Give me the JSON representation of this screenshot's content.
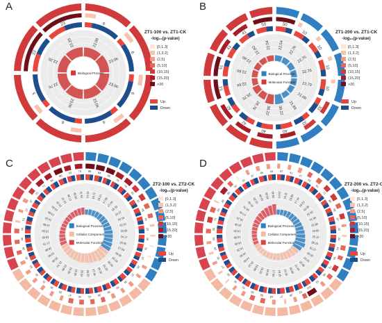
{
  "colors": {
    "up": "#e8473f",
    "down": "#1f4e8c",
    "grid_bg": "#ececec",
    "term_bp_red": "#d03a3a",
    "term_bp_blue": "#2f7fc1",
    "term_cc": "#f4b9a2",
    "term_mf": "#d8444e"
  },
  "legend_scale": {
    "items": [
      {
        "label": "[0,1.3]",
        "color": "#fde3d8"
      },
      {
        "label": "(1,3.2]",
        "color": "#f9c4ad"
      },
      {
        "label": "(2,5]",
        "color": "#f29b83"
      },
      {
        "label": "(5,10]",
        "color": "#e3685a"
      },
      {
        "label": "(10,15]",
        "color": "#cf3b3b"
      },
      {
        "label": "(15,20]",
        "color": "#a81d2a"
      },
      {
        "label": ">20",
        "color": "#6f0f1a"
      }
    ]
  },
  "legend_updown": [
    {
      "label": "Up",
      "color": "#e8473f"
    },
    {
      "label": "Down",
      "color": "#1f4e8c"
    }
  ],
  "chart_data": [
    {
      "type": "circos-enrichment",
      "panel": "A",
      "title": "ZT1-100 vs. ZT1-CK",
      "subtitle": "-log₁₀(p-value)",
      "categories": [
        "Biological Process"
      ],
      "term_colors": [
        "#d03a3a"
      ],
      "terms": 8,
      "rich_factor": [
        22.09,
        23.06,
        23.06,
        23.06,
        23.06,
        22.76,
        22.29,
        22.29
      ],
      "counts_outer": [
        6,
        6,
        6,
        6,
        6,
        5,
        23,
        23
      ],
      "counts_inner": [
        22,
        22,
        22,
        22,
        22,
        22,
        22,
        22
      ],
      "up_fraction": [
        0.2,
        0.2,
        0.2,
        0.2,
        0.2,
        0.2,
        0.5,
        0.5
      ]
    },
    {
      "type": "circos-enrichment",
      "panel": "B",
      "title": "ZT1-200 vs. ZT1-CK",
      "subtitle": "-log₁₀(p-value)",
      "categories": [
        "Biological Process",
        "Molecular Function"
      ],
      "term_colors": [
        "#2f7fc1",
        "#d03a3a"
      ],
      "terms": 16,
      "rich_factor": [
        22.54,
        22.76,
        22.76,
        22.76,
        22.79,
        21.69,
        21.69,
        38.22,
        38.22,
        28.76,
        28.76,
        22.64,
        22.6,
        22.6,
        22.6,
        22.54
      ],
      "counts_outer": [
        50,
        10,
        10,
        10,
        10,
        33,
        33,
        40,
        40,
        42,
        42,
        51,
        51,
        41,
        41,
        50
      ],
      "counts_inner": [
        6,
        6,
        6,
        6,
        6,
        6,
        6,
        6,
        6,
        6,
        6,
        6,
        6,
        6,
        6,
        6
      ],
      "up_fraction": [
        0.6,
        0.6,
        0.6,
        0.6,
        0.6,
        0.4,
        0.4,
        0.7,
        0.7,
        0.5,
        0.5,
        0.6,
        0.6,
        0.6,
        0.6,
        0.6
      ]
    },
    {
      "type": "circos-enrichment",
      "panel": "C",
      "title": "ZT2-100 vs. ZT2-CK",
      "subtitle": "-log₁₀(p-value)",
      "categories": [
        "Biological Process",
        "Cellular Component",
        "Molecular Function"
      ],
      "term_colors": [
        "#2f7fc1",
        "#f4b9a2",
        "#d8444e"
      ],
      "terms": 40,
      "rich_factor": [
        14.15,
        15.72,
        16.21,
        17.05,
        17.44,
        18.32,
        19.12,
        20.15,
        22.01,
        23.66,
        24.17,
        25.02,
        27.09,
        28.35,
        29.18,
        30.4,
        31.25,
        28.1,
        27.4,
        26.2,
        25.55,
        24.9,
        23.3,
        22.6,
        21.7,
        20.8,
        19.9,
        18.8,
        17.7,
        16.6,
        15.5,
        14.9,
        14.2,
        13.8,
        14.5,
        15.2,
        16.1,
        17.3,
        18.5,
        19.7
      ],
      "counts_outer": [
        88,
        84,
        83,
        75,
        74,
        61,
        61,
        48,
        41,
        23,
        16,
        11,
        10,
        29,
        27,
        34,
        30,
        36,
        38,
        41,
        45,
        47,
        29,
        30,
        31,
        32,
        33,
        35,
        38,
        40,
        44,
        21,
        27,
        37,
        51,
        71,
        66,
        80,
        63,
        72
      ],
      "up_fraction": [
        0.55,
        0.6,
        0.5,
        0.45,
        0.6,
        0.5,
        0.55,
        0.6,
        0.5,
        0.45,
        0.5,
        0.6,
        0.55,
        0.5,
        0.45,
        0.6,
        0.5,
        0.55,
        0.6,
        0.5,
        0.45,
        0.5,
        0.6,
        0.55,
        0.5,
        0.45,
        0.6,
        0.5,
        0.55,
        0.6,
        0.5,
        0.45,
        0.5,
        0.6,
        0.55,
        0.5,
        0.45,
        0.6,
        0.5,
        0.55
      ]
    },
    {
      "type": "circos-enrichment",
      "panel": "D",
      "title": "ZT2-200 vs. ZT2-CK",
      "subtitle": "-log₁₀(p-value)",
      "categories": [
        "Biological Process",
        "Cellular Component",
        "Molecular Function"
      ],
      "term_colors": [
        "#2f7fc1",
        "#f4b9a2",
        "#d8444e"
      ],
      "terms": 40,
      "rich_factor": [
        14.02,
        15.11,
        16.09,
        17.44,
        18.22,
        19.05,
        20.43,
        21.3,
        22.8,
        24.6,
        26.12,
        28.1,
        31.27,
        26.5,
        24.2,
        22.9,
        21.66,
        20.5,
        19.3,
        18.15,
        17.6,
        16.9,
        16.2,
        15.8,
        15.1,
        14.9,
        14.6,
        14.2,
        14.0,
        13.9,
        14.3,
        15.0,
        16.1,
        17.5,
        18.7,
        20.4,
        22.2,
        24.3,
        26.9,
        29.4
      ],
      "counts_outer": [
        37,
        41,
        47,
        53,
        61,
        71,
        80,
        58,
        67,
        33,
        24,
        61,
        50,
        73,
        56,
        42,
        114,
        52,
        39,
        27,
        44,
        58,
        60,
        41,
        33,
        18,
        27,
        35,
        29,
        33,
        55,
        72,
        64,
        20,
        83,
        51,
        16,
        37,
        45,
        44
      ],
      "up_fraction": [
        0.5,
        0.55,
        0.6,
        0.5,
        0.45,
        0.6,
        0.5,
        0.55,
        0.6,
        0.5,
        0.45,
        0.5,
        0.6,
        0.55,
        0.5,
        0.45,
        0.6,
        0.5,
        0.55,
        0.6,
        0.5,
        0.45,
        0.5,
        0.6,
        0.55,
        0.5,
        0.45,
        0.6,
        0.5,
        0.55,
        0.6,
        0.5,
        0.45,
        0.5,
        0.6,
        0.55,
        0.5,
        0.45,
        0.6,
        0.5
      ]
    }
  ]
}
